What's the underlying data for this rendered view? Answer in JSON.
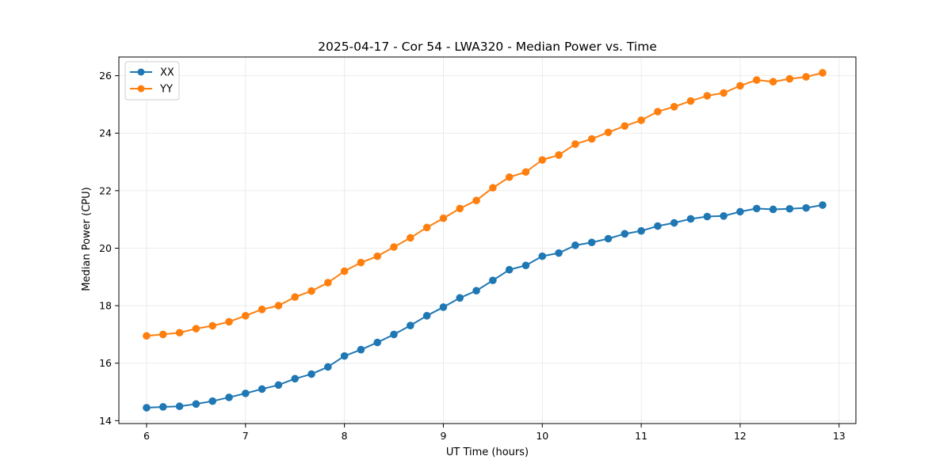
{
  "chart_data": {
    "type": "line",
    "title": "2025-04-17 - Cor 54 - LWA320 - Median Power vs. Time",
    "xlabel": "UT Time (hours)",
    "ylabel": "Median Power (CPU)",
    "xlim": [
      5.72,
      13.17
    ],
    "ylim": [
      13.9,
      26.65
    ],
    "xticks": [
      6,
      7,
      8,
      9,
      10,
      11,
      12,
      13
    ],
    "yticks": [
      14,
      16,
      18,
      20,
      22,
      24,
      26
    ],
    "grid": true,
    "legend_position": "upper-left",
    "x": [
      6.0,
      6.1667,
      6.3333,
      6.5,
      6.6667,
      6.8333,
      7.0,
      7.1667,
      7.3333,
      7.5,
      7.6667,
      7.8333,
      8.0,
      8.1667,
      8.3333,
      8.5,
      8.6667,
      8.8333,
      9.0,
      9.1667,
      9.3333,
      9.5,
      9.6667,
      9.8333,
      10.0,
      10.1667,
      10.3333,
      10.5,
      10.6667,
      10.8333,
      11.0,
      11.1667,
      11.3333,
      11.5,
      11.6667,
      11.8333,
      12.0,
      12.1667,
      12.3333,
      12.5,
      12.6667,
      12.8333
    ],
    "series": [
      {
        "name": "XX",
        "color": "#1f77b4",
        "values": [
          14.45,
          14.48,
          14.5,
          14.58,
          14.68,
          14.81,
          14.95,
          15.1,
          15.24,
          15.46,
          15.62,
          15.87,
          16.25,
          16.47,
          16.72,
          17.0,
          17.31,
          17.65,
          17.95,
          18.27,
          18.52,
          18.88,
          19.25,
          19.4,
          19.72,
          19.83,
          20.1,
          20.2,
          20.33,
          20.5,
          20.6,
          20.77,
          20.88,
          21.02,
          21.1,
          21.12,
          21.27,
          21.38,
          21.35,
          21.37,
          21.4,
          21.5
        ]
      },
      {
        "name": "YY",
        "color": "#ff7f0e",
        "values": [
          16.95,
          17.0,
          17.06,
          17.2,
          17.3,
          17.44,
          17.65,
          17.87,
          18.0,
          18.3,
          18.51,
          18.8,
          19.2,
          19.5,
          19.72,
          20.04,
          20.36,
          20.72,
          21.04,
          21.38,
          21.66,
          22.1,
          22.47,
          22.65,
          23.07,
          23.24,
          23.62,
          23.8,
          24.03,
          24.25,
          24.45,
          24.75,
          24.92,
          25.12,
          25.3,
          25.4,
          25.65,
          25.85,
          25.79,
          25.89,
          25.96,
          26.1
        ]
      }
    ]
  }
}
